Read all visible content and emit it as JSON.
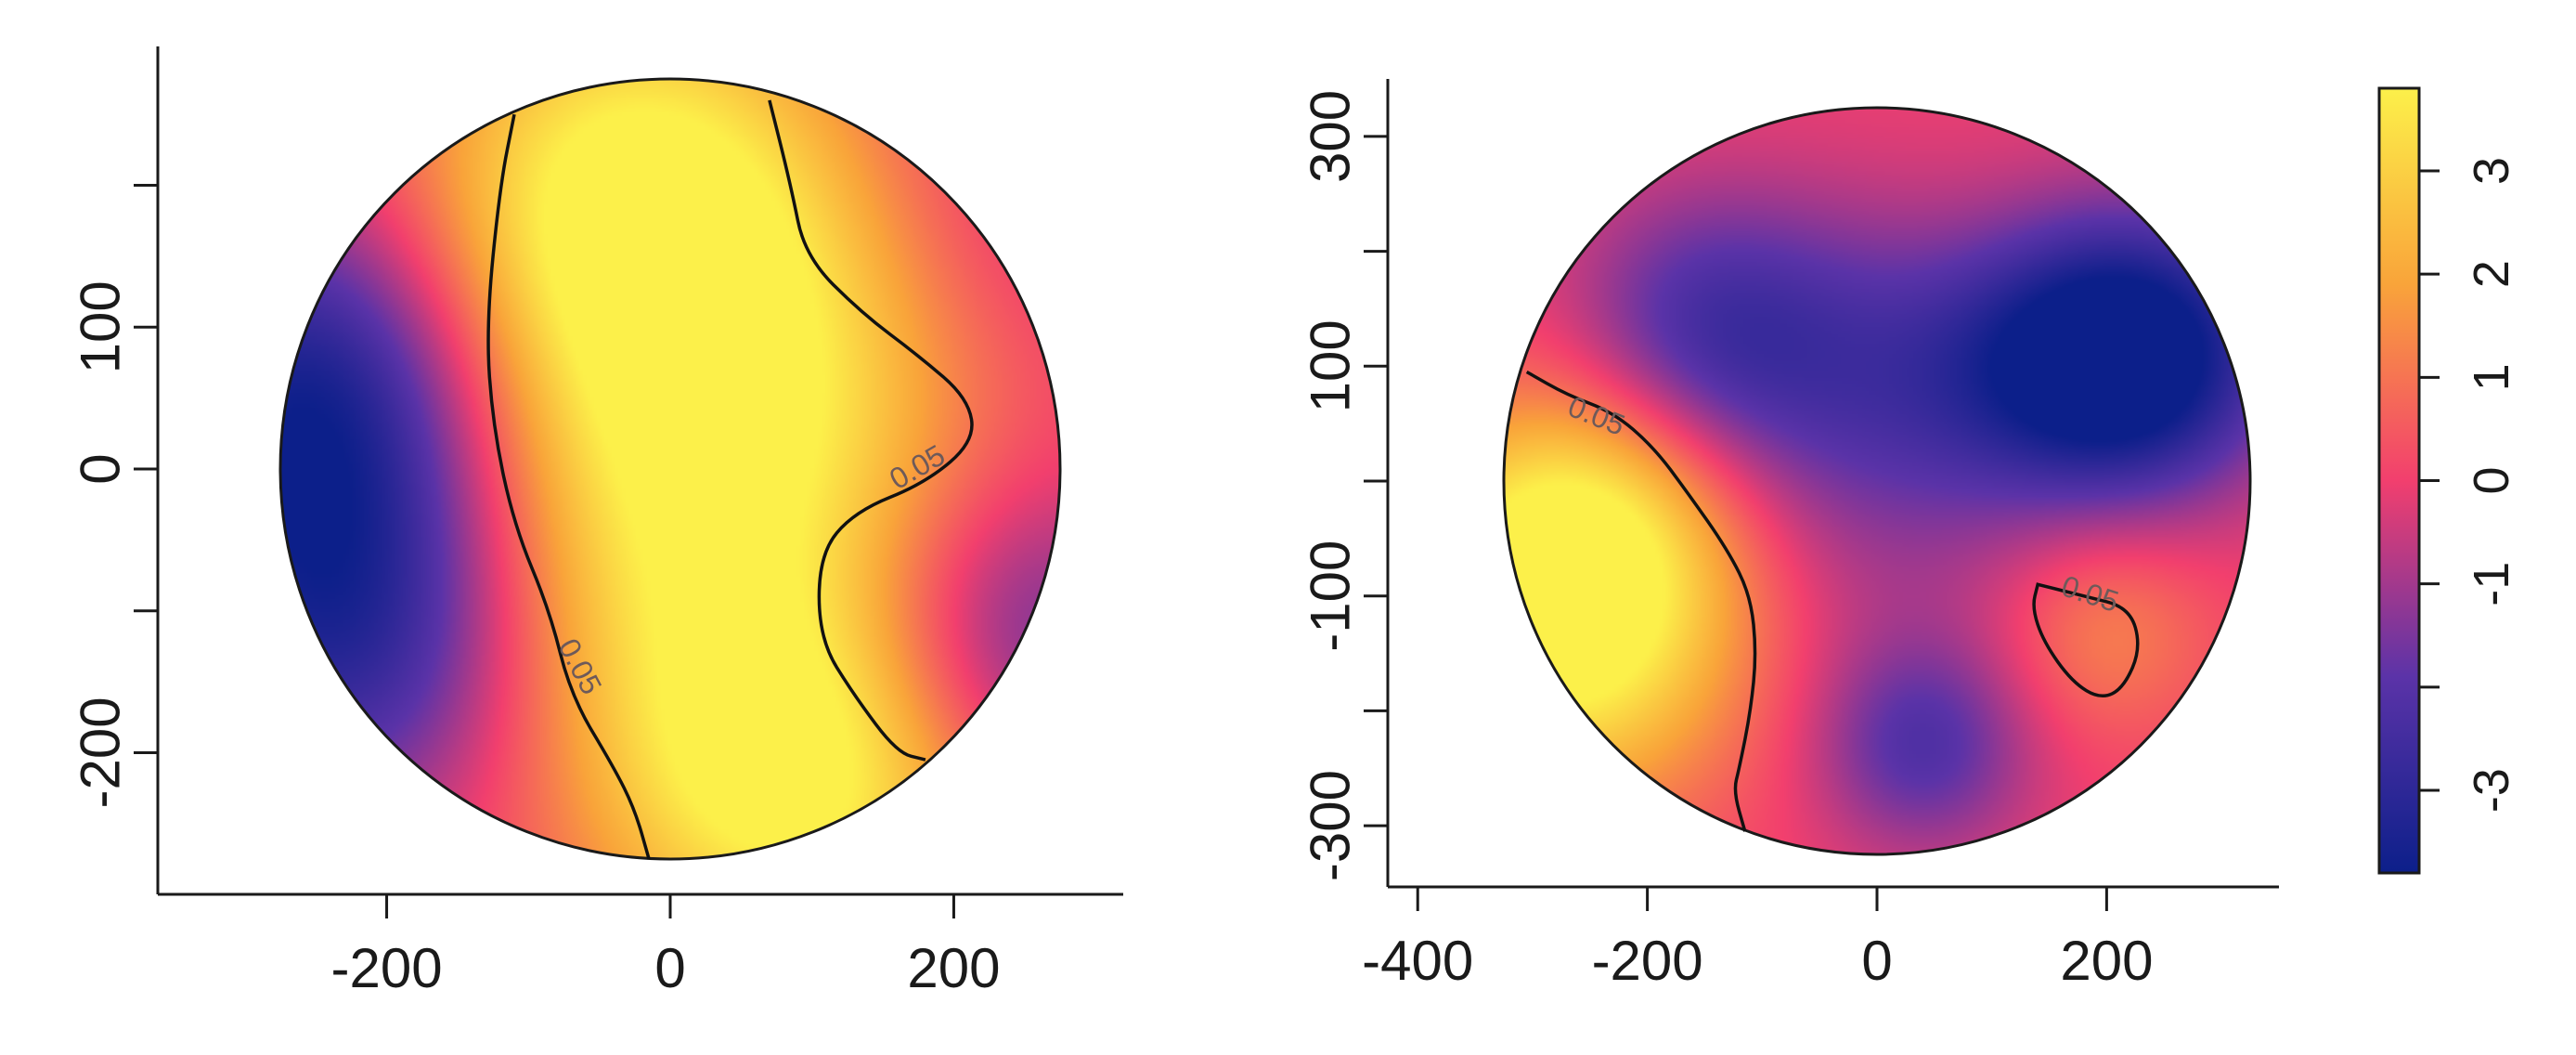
{
  "colormap": {
    "low": "#0c1f8a",
    "mid_low": "#5b33a8",
    "mid": "#f23f6e",
    "mid_high": "#f9a43a",
    "high": "#fcf04a"
  },
  "chart_data": [
    {
      "type": "heatmap",
      "title": "",
      "xlabel": "",
      "ylabel": "",
      "shape": "disc",
      "center": [
        0,
        0
      ],
      "radius": 275,
      "xlim": [
        -360,
        315
      ],
      "ylim": [
        -295,
        290
      ],
      "x_ticks": [
        -200,
        0,
        200
      ],
      "x_tick_labels": [
        "-200",
        "0",
        "200"
      ],
      "y_ticks": [
        -200,
        -100,
        0,
        100,
        200
      ],
      "y_tick_labels": [
        "-200",
        "",
        "0",
        "100",
        ""
      ],
      "field_peaks": [
        {
          "x": -30,
          "y": 190,
          "value": 3.7,
          "spread": 105
        },
        {
          "x": 60,
          "y": 60,
          "value": 2.6,
          "spread": 115
        },
        {
          "x": -20,
          "y": -80,
          "value": 2.3,
          "spread": 120
        },
        {
          "x": 90,
          "y": -220,
          "value": 3.6,
          "spread": 95
        },
        {
          "x": -250,
          "y": 60,
          "value": -3.4,
          "spread": 95
        },
        {
          "x": -220,
          "y": -110,
          "value": -3.5,
          "spread": 100
        },
        {
          "x": 240,
          "y": -120,
          "value": -2.2,
          "spread": 80
        },
        {
          "x": 230,
          "y": 170,
          "value": -0.8,
          "spread": 90
        }
      ],
      "field_base": 0.2,
      "contours": [
        {
          "level_label": "0.05",
          "points": [
            [
              -110,
              250
            ],
            [
              -120,
              200
            ],
            [
              -130,
              100
            ],
            [
              -125,
              30
            ],
            [
              -110,
              -40
            ],
            [
              -85,
              -100
            ],
            [
              -70,
              -160
            ],
            [
              -40,
              -210
            ],
            [
              -25,
              -240
            ],
            [
              -15,
              -275
            ]
          ],
          "label_at": [
            -65,
            -140
          ],
          "label_rotation": 62
        },
        {
          "level_label": "0.05",
          "points": [
            [
              70,
              260
            ],
            [
              85,
              200
            ],
            [
              95,
              150
            ],
            [
              135,
              110
            ],
            [
              175,
              80
            ],
            [
              210,
              50
            ],
            [
              215,
              20
            ],
            [
              180,
              -10
            ],
            [
              130,
              -30
            ],
            [
              105,
              -60
            ],
            [
              105,
              -120
            ],
            [
              130,
              -160
            ],
            [
              160,
              -200
            ],
            [
              180,
              -205
            ]
          ],
          "label_at": [
            175,
            0
          ],
          "label_rotation": -30
        }
      ]
    },
    {
      "type": "heatmap",
      "title": "",
      "xlabel": "",
      "ylabel": "",
      "shape": "disc",
      "center": [
        0,
        0
      ],
      "radius": 325,
      "xlim": [
        -410,
        350
      ],
      "ylim": [
        -350,
        350
      ],
      "x_ticks": [
        -400,
        -200,
        0,
        200
      ],
      "x_tick_labels": [
        "-400",
        "-200",
        "0",
        "200"
      ],
      "y_ticks": [
        -300,
        -200,
        -100,
        0,
        100,
        200,
        300
      ],
      "y_tick_labels": [
        "-300",
        "",
        "-100",
        "",
        "100",
        "",
        "300"
      ],
      "field_peaks": [
        {
          "x": -280,
          "y": -130,
          "value": 3.9,
          "spread": 110
        },
        {
          "x": -250,
          "y": -40,
          "value": 2.4,
          "spread": 90
        },
        {
          "x": 200,
          "y": -130,
          "value": 1.3,
          "spread": 65
        },
        {
          "x": 230,
          "y": 110,
          "value": -4.2,
          "spread": 85
        },
        {
          "x": 140,
          "y": 100,
          "value": -1.5,
          "spread": 80
        },
        {
          "x": -150,
          "y": 130,
          "value": -2.2,
          "spread": 85
        },
        {
          "x": 40,
          "y": -230,
          "value": -2.1,
          "spread": 65
        },
        {
          "x": 0,
          "y": 20,
          "value": -1.2,
          "spread": 120
        },
        {
          "x": 0,
          "y": 120,
          "value": -0.9,
          "spread": 90
        }
      ],
      "field_base": 0.0,
      "contours": [
        {
          "level_label": "0.05",
          "points": [
            [
              -305,
              95
            ],
            [
              -270,
              75
            ],
            [
              -230,
              60
            ],
            [
              -195,
              30
            ],
            [
              -165,
              -10
            ],
            [
              -130,
              -60
            ],
            [
              -110,
              -100
            ],
            [
              -105,
              -150
            ],
            [
              -110,
              -200
            ],
            [
              -120,
              -250
            ],
            [
              -125,
              -270
            ],
            [
              -115,
              -305
            ]
          ],
          "label_at": [
            -245,
            55
          ],
          "label_rotation": 22
        },
        {
          "level_label": "0.05",
          "points": [
            [
              140,
              -90
            ],
            [
              180,
              -100
            ],
            [
              220,
              -110
            ],
            [
              230,
              -145
            ],
            [
              215,
              -180
            ],
            [
              195,
              -190
            ],
            [
              170,
              -175
            ],
            [
              145,
              -140
            ],
            [
              135,
              -110
            ],
            [
              140,
              -90
            ]
          ],
          "label_at": [
            185,
            -100
          ],
          "label_rotation": 18,
          "closed": true
        }
      ]
    },
    {
      "type": "colorbar",
      "range": [
        -3.8,
        3.8
      ],
      "ticks": [
        -3,
        -1,
        0,
        1,
        2,
        3
      ],
      "tick_labels": [
        "-3",
        "-1",
        "0",
        "1",
        "2",
        "3"
      ],
      "minor_ticks": [
        -2
      ]
    }
  ]
}
